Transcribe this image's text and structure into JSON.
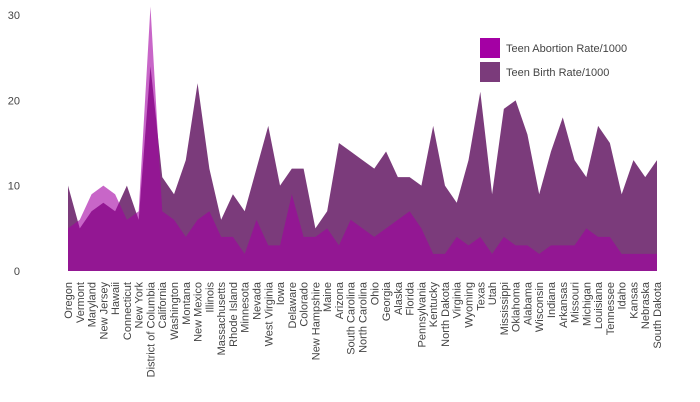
{
  "chart_data": {
    "type": "area",
    "categories": [
      "Oregon",
      "Vermont",
      "Maryland",
      "New Jersey",
      "Hawaii",
      "Connecticut",
      "New York",
      "District of Columbia",
      "California",
      "Washington",
      "Montana",
      "New Mexico",
      "Illinois",
      "Massachusetts",
      "Rhode Island",
      "Minnesota",
      "Nevada",
      "West Virginia",
      "Iowa",
      "Delaware",
      "Colorado",
      "New Hampshire",
      "Maine",
      "Arizona",
      "South Carolina",
      "North Carolina",
      "Ohio",
      "Georgia",
      "Alaska",
      "Florida",
      "Pennsylvania",
      "Kentucky",
      "North Dakota",
      "Virginia",
      "Wyoming",
      "Texas",
      "Utah",
      "Mississippi",
      "Oklahoma",
      "Alabama",
      "Wisconsin",
      "Indiana",
      "Arkansas",
      "Missouri",
      "Michigan",
      "Louisiana",
      "Tennessee",
      "Idaho",
      "Kansas",
      "Nebraska",
      "South Dakota"
    ],
    "series": [
      {
        "name": "Teen Abortion Rate/1000",
        "color": "#a400a4",
        "values": [
          5,
          6,
          9,
          10,
          9,
          6,
          7,
          31,
          7,
          6,
          4,
          6,
          7,
          4,
          4,
          2,
          6,
          3,
          3,
          9,
          4,
          4,
          5,
          3,
          6,
          5,
          4,
          5,
          6,
          7,
          5,
          2,
          2,
          4,
          3,
          4,
          2,
          4,
          3,
          3,
          2,
          3,
          3,
          3,
          5,
          4,
          4,
          2,
          2,
          2,
          2
        ]
      },
      {
        "name": "Teen Birth Rate/1000",
        "color": "#7b3b7b",
        "values": [
          10,
          5,
          7,
          8,
          7,
          10,
          6,
          24,
          11,
          9,
          13,
          22,
          12,
          6,
          9,
          7,
          12,
          17,
          10,
          12,
          12,
          5,
          7,
          15,
          14,
          13,
          12,
          14,
          11,
          11,
          10,
          17,
          10,
          8,
          13,
          21,
          9,
          19,
          20,
          16,
          9,
          14,
          18,
          13,
          11,
          17,
          15,
          9,
          13,
          11,
          13
        ]
      }
    ],
    "ylim": [
      0,
      30
    ],
    "yticks": [
      0,
      10,
      20,
      30
    ],
    "grid": false,
    "legend": "upper-right"
  }
}
